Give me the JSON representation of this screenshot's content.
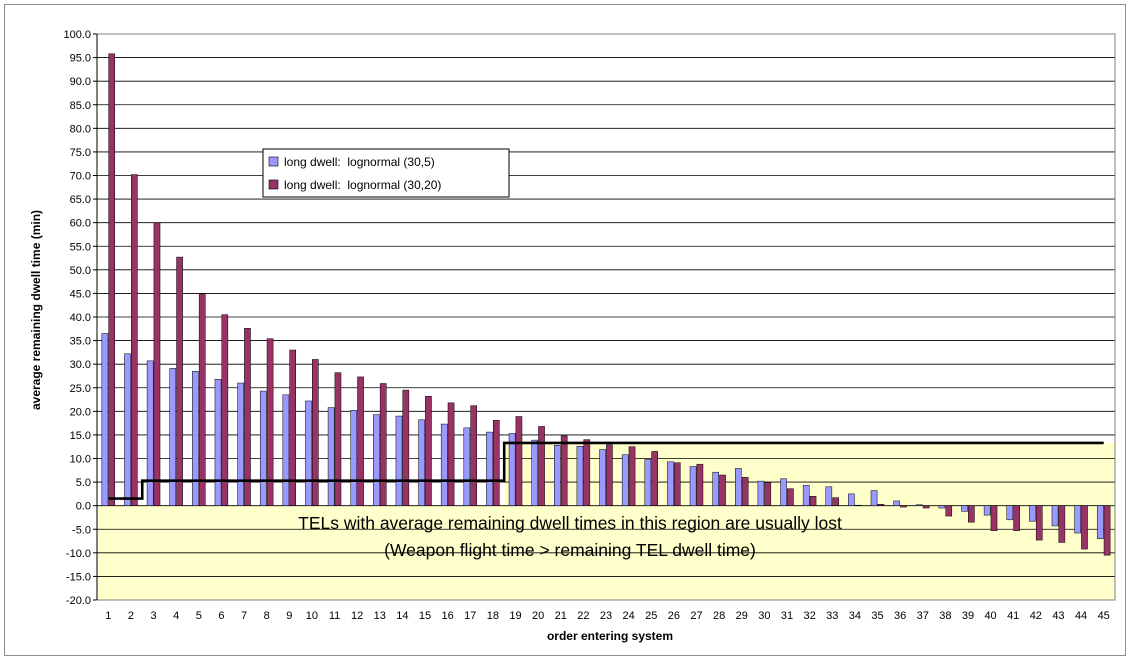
{
  "chart_data": {
    "type": "bar",
    "title": "",
    "xlabel": "order entering system",
    "ylabel": "average remaining dwell time (min)",
    "ylim": [
      -20,
      100
    ],
    "ytick_step": 5,
    "categories": [
      "1",
      "2",
      "3",
      "4",
      "5",
      "6",
      "7",
      "8",
      "9",
      "10",
      "11",
      "12",
      "13",
      "14",
      "15",
      "16",
      "17",
      "18",
      "19",
      "20",
      "21",
      "22",
      "23",
      "24",
      "25",
      "26",
      "27",
      "28",
      "29",
      "30",
      "31",
      "32",
      "33",
      "34",
      "35",
      "36",
      "37",
      "38",
      "39",
      "40",
      "41",
      "42",
      "43",
      "44",
      "45"
    ],
    "series": [
      {
        "name": "long dwell:  lognormal (30,5)",
        "color": "#9999ff",
        "values": [
          36.5,
          32.2,
          30.7,
          29.1,
          28.5,
          26.8,
          26.0,
          24.3,
          23.5,
          22.2,
          20.8,
          20.2,
          19.3,
          19.0,
          18.2,
          17.3,
          16.5,
          15.6,
          15.3,
          13.9,
          12.8,
          12.6,
          11.9,
          10.8,
          9.8,
          9.3,
          8.3,
          7.1,
          7.9,
          5.2,
          5.7,
          4.3,
          4.0,
          2.5,
          3.2,
          1.0,
          0.2,
          -0.5,
          -1.2,
          -2.0,
          -3.0,
          -3.3,
          -4.3,
          -5.8,
          -7.0
        ]
      },
      {
        "name": "long dwell:  lognormal (30,20)",
        "color": "#993366",
        "values": [
          95.8,
          70.2,
          60.0,
          52.7,
          44.9,
          40.5,
          37.6,
          35.4,
          33.0,
          31.0,
          28.2,
          27.3,
          25.9,
          24.5,
          23.2,
          21.8,
          21.2,
          18.1,
          18.9,
          16.8,
          14.8,
          14.0,
          12.9,
          12.5,
          11.5,
          9.1,
          8.8,
          6.5,
          6.0,
          4.9,
          3.6,
          2.0,
          1.7,
          0.1,
          0.3,
          -0.3,
          -0.5,
          -2.2,
          -3.5,
          -5.3,
          -5.3,
          -7.3,
          -7.8,
          -9.2,
          -10.5
        ]
      }
    ],
    "threshold_line": {
      "color": "#000000",
      "values": [
        1.5,
        1.5,
        5.3,
        5.3,
        5.3,
        5.3,
        5.3,
        5.3,
        5.3,
        5.3,
        5.3,
        5.3,
        5.3,
        5.3,
        5.3,
        5.3,
        5.3,
        5.3,
        13.3,
        13.3,
        13.3,
        13.3,
        13.3,
        13.3,
        13.3,
        13.3,
        13.3,
        13.3,
        13.3,
        13.3,
        13.3,
        13.3,
        13.3,
        13.3,
        13.3,
        13.3,
        13.3,
        13.3,
        13.3,
        13.3,
        13.3,
        13.3,
        13.3,
        13.3,
        13.3
      ]
    },
    "region": {
      "color": "#ffffcc",
      "from_category": "19",
      "ymax": 13.3,
      "ymin": -20,
      "from_category_left": "1",
      "left_ymax": 0
    },
    "annotation": {
      "line1": "TELs with average remaining dwell times in this region are usually lost",
      "line2": "(Weapon flight time > remaining TEL dwell time)"
    },
    "grid": true,
    "legend_position": "upper-left"
  }
}
